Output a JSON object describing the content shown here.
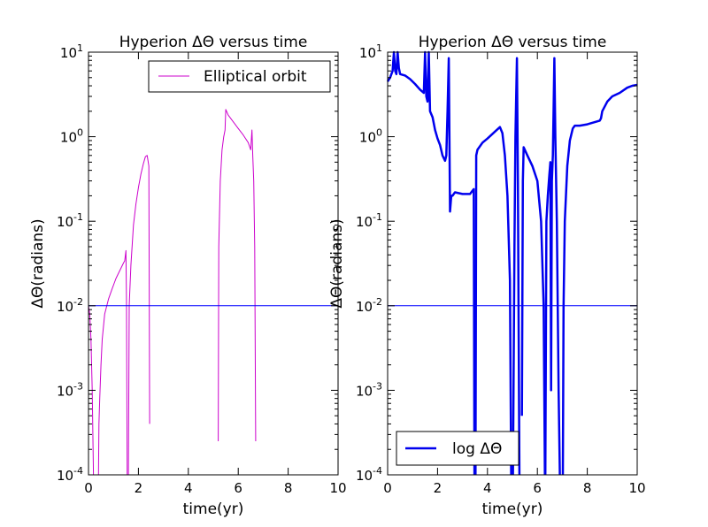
{
  "chart_data": [
    {
      "type": "line",
      "title": "Hyperion  ΔΘ versus time",
      "xlabel": "time(yr)",
      "ylabel": "ΔΘ(radians)",
      "xscale": "linear",
      "yscale": "log",
      "xlim": [
        0,
        10
      ],
      "ylim": [
        0.0001,
        10
      ],
      "xticks": [
        "0",
        "2",
        "4",
        "6",
        "8",
        "10"
      ],
      "yticks": [
        {
          "base": "10",
          "exp": "-4",
          "value": 0.0001
        },
        {
          "base": "10",
          "exp": "-3",
          "value": 0.001
        },
        {
          "base": "10",
          "exp": "-2",
          "value": 0.01
        },
        {
          "base": "10",
          "exp": "-1",
          "value": 0.1
        },
        {
          "base": "10",
          "exp": "0",
          "value": 1
        },
        {
          "base": "10",
          "exp": "1",
          "value": 10
        }
      ],
      "legend": {
        "position": "top-right"
      },
      "series": [
        {
          "name": "Elliptical orbit",
          "color": "#cc00cc",
          "in_legend": true,
          "line_width": "thin",
          "segments": [
            [
              [
                0.0,
                0.01
              ],
              [
                0.05,
                0.008
              ],
              [
                0.1,
                0.004
              ],
              [
                0.15,
                0.001
              ],
              [
                0.2,
                0.0001
              ]
            ],
            [
              [
                0.4,
                0.0001
              ],
              [
                0.42,
                0.0004
              ],
              [
                0.45,
                0.0008
              ],
              [
                0.5,
                0.002
              ],
              [
                0.55,
                0.004
              ],
              [
                0.65,
                0.008
              ],
              [
                0.8,
                0.012
              ],
              [
                0.95,
                0.016
              ],
              [
                1.1,
                0.021
              ],
              [
                1.25,
                0.026
              ],
              [
                1.4,
                0.032
              ],
              [
                1.45,
                0.034
              ],
              [
                1.5,
                0.045
              ],
              [
                1.52,
                0.012
              ],
              [
                1.55,
                0.0001
              ]
            ],
            [
              [
                1.6,
                0.0001
              ],
              [
                1.63,
                0.01
              ],
              [
                1.7,
                0.03
              ],
              [
                1.8,
                0.09
              ],
              [
                1.9,
                0.16
              ],
              [
                2.0,
                0.25
              ],
              [
                2.1,
                0.36
              ],
              [
                2.2,
                0.48
              ],
              [
                2.28,
                0.58
              ],
              [
                2.35,
                0.6
              ],
              [
                2.42,
                0.45
              ],
              [
                2.45,
                0.0004
              ]
            ],
            [
              [
                5.2,
                0.00025
              ],
              [
                5.22,
                0.05
              ],
              [
                5.28,
                0.3
              ],
              [
                5.35,
                0.7
              ],
              [
                5.42,
                1.0
              ],
              [
                5.47,
                1.2
              ],
              [
                5.5,
                2.1
              ],
              [
                5.6,
                1.8
              ],
              [
                5.8,
                1.5
              ],
              [
                6.0,
                1.25
              ],
              [
                6.2,
                1.05
              ],
              [
                6.4,
                0.85
              ],
              [
                6.5,
                0.7
              ],
              [
                6.55,
                1.2
              ],
              [
                6.58,
                0.6
              ],
              [
                6.62,
                0.3
              ],
              [
                6.66,
                0.05
              ],
              [
                6.7,
                0.00025
              ]
            ]
          ]
        },
        {
          "name": "reference",
          "color": "#0000ff",
          "in_legend": false,
          "line_width": "thin",
          "segments": [
            [
              [
                0,
                0.01
              ],
              [
                10,
                0.01
              ]
            ]
          ]
        }
      ]
    },
    {
      "type": "line",
      "title": "Hyperion  ΔΘ versus time",
      "xlabel": "time(yr)",
      "ylabel": "ΔΘ(radians)",
      "xscale": "linear",
      "yscale": "log",
      "xlim": [
        0,
        10
      ],
      "ylim": [
        0.0001,
        10
      ],
      "xticks": [
        "0",
        "2",
        "4",
        "6",
        "8",
        "10"
      ],
      "yticks": [
        {
          "base": "10",
          "exp": "-4",
          "value": 0.0001
        },
        {
          "base": "10",
          "exp": "-3",
          "value": 0.001
        },
        {
          "base": "10",
          "exp": "-2",
          "value": 0.01
        },
        {
          "base": "10",
          "exp": "-1",
          "value": 0.1
        },
        {
          "base": "10",
          "exp": "0",
          "value": 1
        },
        {
          "base": "10",
          "exp": "1",
          "value": 10
        }
      ],
      "legend": {
        "position": "bottom-left"
      },
      "series": [
        {
          "name": "log ΔΘ",
          "color": "#0000ee",
          "in_legend": true,
          "line_width": "thick",
          "segments": [
            [
              [
                0.0,
                4.5
              ],
              [
                0.1,
                5.0
              ],
              [
                0.2,
                6.0
              ],
              [
                0.25,
                10
              ],
              [
                0.3,
                6.0
              ],
              [
                0.35,
                5.5
              ],
              [
                0.4,
                10
              ],
              [
                0.45,
                6.5
              ],
              [
                0.5,
                5.5
              ],
              [
                0.7,
                5.3
              ],
              [
                0.9,
                4.8
              ],
              [
                1.1,
                4.2
              ],
              [
                1.3,
                3.6
              ],
              [
                1.45,
                3.3
              ],
              [
                1.5,
                10
              ],
              [
                1.55,
                3.0
              ],
              [
                1.6,
                2.6
              ],
              [
                1.65,
                10
              ],
              [
                1.7,
                2.0
              ],
              [
                1.8,
                1.7
              ],
              [
                1.9,
                1.2
              ],
              [
                2.0,
                0.95
              ],
              [
                2.1,
                0.8
              ],
              [
                2.2,
                0.6
              ],
              [
                2.3,
                0.52
              ],
              [
                2.35,
                0.6
              ],
              [
                2.4,
                2.0
              ],
              [
                2.45,
                8.5
              ],
              [
                2.5,
                0.13
              ],
              [
                2.55,
                0.2
              ],
              [
                2.6,
                0.2
              ],
              [
                2.7,
                0.22
              ],
              [
                3.0,
                0.21
              ],
              [
                3.3,
                0.21
              ],
              [
                3.45,
                0.24
              ],
              [
                3.48,
                0.0001
              ]
            ],
            [
              [
                3.52,
                0.0001
              ],
              [
                3.55,
                0.6
              ],
              [
                3.6,
                0.7
              ],
              [
                3.8,
                0.85
              ],
              [
                4.0,
                0.95
              ],
              [
                4.3,
                1.15
              ],
              [
                4.5,
                1.3
              ],
              [
                4.6,
                1.1
              ],
              [
                4.7,
                0.6
              ],
              [
                4.8,
                0.2
              ],
              [
                4.9,
                0.02
              ],
              [
                4.95,
                0.0001
              ]
            ],
            [
              [
                5.02,
                0.0001
              ],
              [
                5.08,
                0.05
              ],
              [
                5.12,
                1.0
              ],
              [
                5.18,
                8.5
              ],
              [
                5.22,
                0.3
              ],
              [
                5.28,
                0.0001
              ]
            ],
            [
              [
                5.38,
                0.0005
              ],
              [
                5.42,
                0.3
              ],
              [
                5.45,
                0.75
              ],
              [
                5.6,
                0.6
              ],
              [
                5.8,
                0.45
              ],
              [
                6.0,
                0.3
              ],
              [
                6.15,
                0.1
              ],
              [
                6.25,
                0.01
              ],
              [
                6.3,
                0.0001
              ]
            ],
            [
              [
                6.32,
                0.0001
              ],
              [
                6.36,
                0.1
              ],
              [
                6.42,
                0.2
              ],
              [
                6.48,
                0.35
              ],
              [
                6.52,
                0.5
              ],
              [
                6.55,
                0.001
              ],
              [
                6.58,
                0.3
              ],
              [
                6.62,
                0.6
              ],
              [
                6.65,
                2.0
              ],
              [
                6.68,
                8.5
              ],
              [
                6.72,
                1.0
              ],
              [
                6.78,
                0.1
              ],
              [
                6.85,
                0.001
              ],
              [
                6.9,
                0.0001
              ]
            ],
            [
              [
                7.02,
                0.0001
              ],
              [
                7.05,
                0.01
              ],
              [
                7.1,
                0.1
              ],
              [
                7.2,
                0.45
              ],
              [
                7.3,
                0.9
              ],
              [
                7.42,
                1.25
              ],
              [
                7.5,
                1.35
              ],
              [
                7.7,
                1.35
              ],
              [
                8.0,
                1.4
              ],
              [
                8.5,
                1.55
              ],
              [
                8.55,
                1.65
              ],
              [
                8.6,
                2.0
              ],
              [
                8.8,
                2.6
              ],
              [
                9.0,
                3.0
              ],
              [
                9.3,
                3.3
              ],
              [
                9.6,
                3.8
              ],
              [
                9.8,
                4.0
              ],
              [
                10.0,
                4.1
              ]
            ]
          ]
        },
        {
          "name": "reference",
          "color": "#0000ff",
          "in_legend": false,
          "line_width": "thin",
          "segments": [
            [
              [
                0,
                0.01
              ],
              [
                10,
                0.01
              ]
            ]
          ]
        }
      ]
    }
  ]
}
